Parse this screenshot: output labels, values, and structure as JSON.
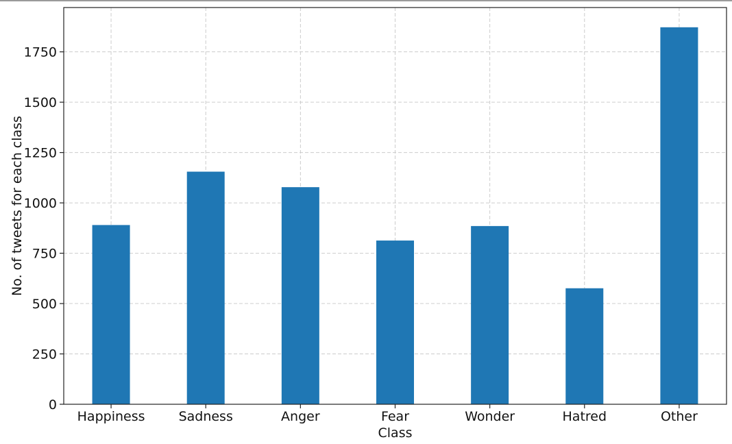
{
  "chart_data": {
    "type": "bar",
    "title": "",
    "xlabel": "Class",
    "ylabel": "No. of tweets for each class",
    "categories": [
      "Happiness",
      "Sadness",
      "Anger",
      "Fear",
      "Wonder",
      "Hatred",
      "Other"
    ],
    "values": [
      890,
      1155,
      1078,
      813,
      885,
      576,
      1872
    ],
    "ylim": [
      0,
      1970
    ],
    "yticks": [
      0,
      250,
      500,
      750,
      1000,
      1250,
      1500,
      1750
    ],
    "grid": true,
    "bar_color": "#1f77b4",
    "grid_color": "#cccccc",
    "axis_color": "#222222"
  }
}
